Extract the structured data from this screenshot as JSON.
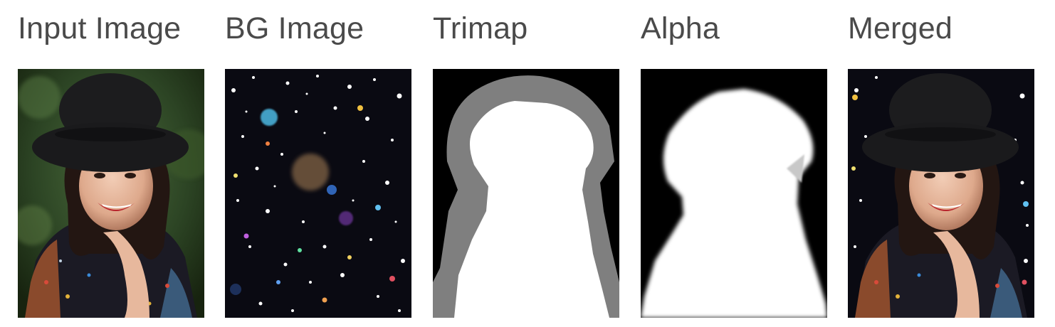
{
  "panels": [
    {
      "title": "Input Image",
      "image": "portrait-photo"
    },
    {
      "title": "BG Image",
      "image": "bokeh-glitter-background"
    },
    {
      "title": "Trimap",
      "image": "trimap-mask"
    },
    {
      "title": "Alpha",
      "image": "alpha-matte"
    },
    {
      "title": "Merged",
      "image": "composited-portrait"
    }
  ]
}
